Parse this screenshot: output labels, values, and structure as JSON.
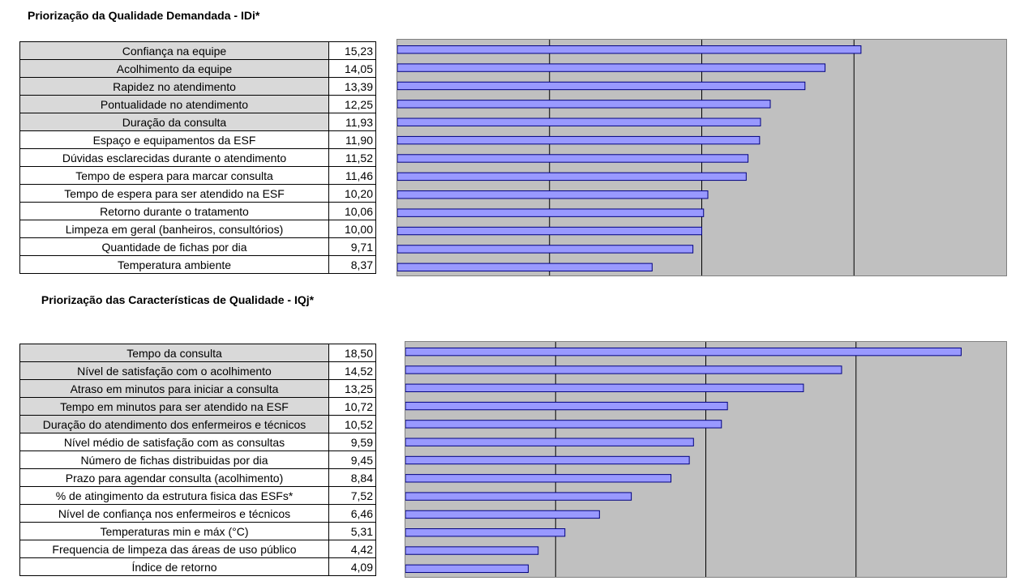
{
  "chart_data": [
    {
      "type": "bar",
      "title": "Priorização da Qualidade Demandada - IDi*",
      "categories": [
        "Confiança na equipe",
        "Acolhimento da equipe",
        "Rapidez no atendimento",
        "Pontualidade no atendimento",
        "Duração da consulta",
        "Espaço e equipamentos da ESF",
        "Dúvidas esclarecidas durante o atendimento",
        "Tempo de espera para marcar consulta",
        "Tempo de espera para ser atendido na ESF",
        "Retorno durante o tratamento",
        "Limpeza em geral (banheiros, consultórios)",
        "Quantidade de fichas por dia",
        "Temperatura ambiente"
      ],
      "values": [
        15.23,
        14.05,
        13.39,
        12.25,
        11.93,
        11.9,
        11.52,
        11.46,
        10.2,
        10.06,
        10.0,
        9.71,
        8.37
      ],
      "value_labels": [
        "15,23",
        "14,05",
        "13,39",
        "12,25",
        "11,93",
        "11,90",
        "11,52",
        "11,46",
        "10,20",
        "10,06",
        "10,00",
        "9,71",
        "8,37"
      ],
      "shaded_rows": 5,
      "xlim": [
        0,
        20
      ],
      "grid_step": 5,
      "orientation": "horizontal",
      "bar_color": "#9999ff",
      "plot_background": "#c0c0c0"
    },
    {
      "type": "bar",
      "title": "Priorização das Características de Qualidade - IQj*",
      "categories": [
        "Tempo da consulta",
        "Nível de satisfação com o acolhimento",
        "Atraso em minutos para iniciar a consulta",
        "Tempo em minutos para ser atendido na ESF",
        "Duração do atendimento dos enfermeiros e técnicos",
        "Nível médio de satisfação com as consultas",
        "Número de fichas distribuidas por dia",
        "Prazo para agendar consulta (acolhimento)",
        "% de atingimento da estrutura fisica das ESFs*",
        "Nível de confiança nos enfermeiros e técnicos",
        "Temperaturas min e máx (°C)",
        "Frequencia de limpeza das áreas de uso público",
        "Índice de retorno"
      ],
      "values": [
        18.5,
        14.52,
        13.25,
        10.72,
        10.52,
        9.59,
        9.45,
        8.84,
        7.52,
        6.46,
        5.31,
        4.42,
        4.09
      ],
      "value_labels": [
        "18,50",
        "14,52",
        "13,25",
        "10,72",
        "10,52",
        "9,59",
        "9,45",
        "8,84",
        "7,52",
        "6,46",
        "5,31",
        "4,42",
        "4,09"
      ],
      "shaded_rows": 5,
      "xlim": [
        0,
        20
      ],
      "grid_step": 5,
      "orientation": "horizontal",
      "bar_color": "#9999ff",
      "plot_background": "#c0c0c0"
    }
  ]
}
